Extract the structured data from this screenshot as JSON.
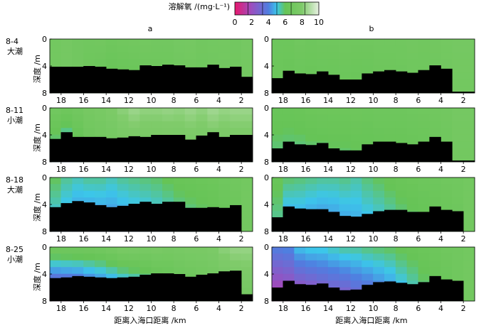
{
  "chart_data": {
    "type": "heatmap",
    "colorbar": {
      "title": "溶解氧 /(mg·L⁻¹)",
      "ticks": [
        "0",
        "2",
        "4",
        "6",
        "8",
        "10"
      ],
      "range": [
        0,
        10
      ],
      "colors": [
        "#e8186e",
        "#9a4fc0",
        "#4f7ee0",
        "#3cc6ea",
        "#66c456",
        "#7fcb6a",
        "#e8f0e2"
      ]
    },
    "columns": [
      "a",
      "b"
    ],
    "x_axis": {
      "label": "距离入海口距离 /km",
      "ticks": [
        "18",
        "16",
        "14",
        "12",
        "10",
        "8",
        "6",
        "4",
        "2"
      ],
      "tick_values": [
        18,
        16,
        14,
        12,
        10,
        8,
        6,
        4,
        2
      ],
      "range": [
        19,
        1
      ]
    },
    "y_axis": {
      "label": "深度 /m",
      "ticks": [
        "0",
        "4",
        "8"
      ],
      "tick_values": [
        0,
        4,
        8
      ],
      "range": [
        0,
        8
      ]
    },
    "rows": [
      {
        "date": "8-4",
        "tide": "大潮",
        "bottom": {
          "a": [
            4.1,
            4.1,
            4.1,
            4.0,
            4.1,
            4.4,
            4.5,
            4.6,
            3.9,
            4.0,
            3.8,
            3.9,
            4.2,
            4.2,
            3.8,
            4.3,
            4.1,
            5.6
          ],
          "b": [
            5.8,
            4.7,
            5.1,
            5.2,
            4.8,
            5.3,
            6.0,
            6.0,
            5.1,
            4.8,
            4.6,
            4.8,
            5.0,
            4.6,
            3.9,
            4.4,
            7.8,
            7.8
          ]
        },
        "do": {
          "a": [
            [
              7.0,
              7.0
            ],
            [
              7.2,
              7.1
            ],
            [
              7.0,
              6.9
            ],
            [
              6.9,
              6.4
            ],
            [
              7.0,
              6.0
            ],
            [
              6.8,
              5.8
            ],
            [
              6.9,
              6.0
            ],
            [
              7.0,
              6.0
            ],
            [
              7.1,
              6.2
            ],
            [
              7.0,
              6.3
            ],
            [
              7.0,
              6.4
            ],
            [
              7.2,
              6.5
            ],
            [
              7.2,
              6.6
            ],
            [
              7.0,
              6.6
            ],
            [
              7.1,
              6.7
            ],
            [
              7.1,
              6.8
            ],
            [
              7.0,
              6.8
            ],
            [
              7.2,
              7.0
            ]
          ],
          "b": [
            [
              6.6,
              6.4
            ],
            [
              6.6,
              6.2
            ],
            [
              6.8,
              6.3
            ],
            [
              6.7,
              6.2
            ],
            [
              6.8,
              6.3
            ],
            [
              6.8,
              6.2
            ],
            [
              6.9,
              6.3
            ],
            [
              6.8,
              6.2
            ],
            [
              6.8,
              6.3
            ],
            [
              6.9,
              6.4
            ],
            [
              6.9,
              6.4
            ],
            [
              6.9,
              6.5
            ],
            [
              7.0,
              6.6
            ],
            [
              6.9,
              6.6
            ],
            [
              7.0,
              6.6
            ],
            [
              7.1,
              6.8
            ],
            [
              7.2,
              7.0
            ],
            [
              7.2,
              7.0
            ]
          ]
        }
      },
      {
        "date": "8-11",
        "tide": "小潮",
        "bottom": {
          "a": [
            4.6,
            3.6,
            4.3,
            4.3,
            4.3,
            4.5,
            4.4,
            4.2,
            4.3,
            4.0,
            4.0,
            4.0,
            4.7,
            4.1,
            3.6,
            4.3,
            4.0,
            4.0
          ],
          "b": [
            6.0,
            5.0,
            5.4,
            5.5,
            5.2,
            6.0,
            6.3,
            6.3,
            5.4,
            5.0,
            5.0,
            5.2,
            5.4,
            5.0,
            4.3,
            5.0,
            7.8,
            7.8
          ]
        },
        "do": {
          "a": [
            [
              7.0,
              5.0
            ],
            [
              6.8,
              4.2
            ],
            [
              7.0,
              5.3
            ],
            [
              7.3,
              6.4
            ],
            [
              7.5,
              6.6
            ],
            [
              7.8,
              6.7
            ],
            [
              8.3,
              6.9
            ],
            [
              8.6,
              6.9
            ],
            [
              8.4,
              6.9
            ],
            [
              8.4,
              6.9
            ],
            [
              8.5,
              6.9
            ],
            [
              8.4,
              7.0
            ],
            [
              8.6,
              7.0
            ],
            [
              8.4,
              7.0
            ],
            [
              8.7,
              7.0
            ],
            [
              8.5,
              7.0
            ],
            [
              8.6,
              7.0
            ],
            [
              8.6,
              7.0
            ]
          ],
          "b": [
            [
              6.3,
              5.6
            ],
            [
              6.3,
              5.5
            ],
            [
              6.4,
              5.5
            ],
            [
              6.5,
              5.6
            ],
            [
              6.6,
              5.6
            ],
            [
              6.6,
              5.7
            ],
            [
              6.6,
              5.7
            ],
            [
              6.7,
              5.8
            ],
            [
              6.6,
              5.8
            ],
            [
              6.7,
              5.9
            ],
            [
              6.7,
              6.0
            ],
            [
              6.7,
              6.0
            ],
            [
              6.8,
              6.1
            ],
            [
              6.8,
              6.2
            ],
            [
              6.9,
              6.4
            ],
            [
              7.0,
              6.6
            ],
            [
              7.2,
              7.0
            ],
            [
              7.2,
              7.0
            ]
          ]
        }
      },
      {
        "date": "8-18",
        "tide": "大潮",
        "bottom": {
          "a": [
            4.4,
            3.8,
            3.5,
            3.7,
            4.1,
            4.4,
            4.2,
            3.9,
            3.6,
            3.9,
            3.6,
            3.6,
            4.5,
            4.5,
            4.4,
            4.5,
            4.1,
            8.0
          ],
          "b": [
            5.9,
            4.3,
            4.6,
            4.7,
            4.7,
            5.1,
            5.7,
            5.8,
            5.4,
            5.0,
            4.8,
            4.8,
            5.1,
            5.1,
            4.3,
            4.8,
            5.0,
            8.0
          ]
        },
        "do": {
          "a": [
            [
              6.0,
              4.7
            ],
            [
              5.6,
              4.3
            ],
            [
              5.4,
              3.9
            ],
            [
              5.6,
              3.7
            ],
            [
              5.6,
              3.8
            ],
            [
              5.4,
              3.9
            ],
            [
              5.6,
              4.1
            ],
            [
              5.7,
              4.3
            ],
            [
              5.8,
              4.4
            ],
            [
              5.9,
              4.6
            ],
            [
              6.1,
              4.8
            ],
            [
              6.3,
              5.1
            ],
            [
              6.4,
              5.3
            ],
            [
              6.5,
              5.5
            ],
            [
              6.6,
              5.7
            ],
            [
              6.8,
              6.0
            ],
            [
              6.9,
              6.3
            ],
            [
              7.0,
              7.0
            ]
          ],
          "b": [
            [
              6.2,
              5.4
            ],
            [
              5.9,
              4.1
            ],
            [
              5.8,
              4.2
            ],
            [
              5.7,
              4.0
            ],
            [
              5.6,
              3.9
            ],
            [
              5.6,
              4.0
            ],
            [
              5.7,
              4.2
            ],
            [
              5.5,
              4.4
            ],
            [
              5.8,
              4.6
            ],
            [
              6.0,
              4.8
            ],
            [
              6.2,
              5.1
            ],
            [
              6.4,
              5.4
            ],
            [
              6.5,
              5.6
            ],
            [
              6.6,
              5.8
            ],
            [
              6.7,
              6.0
            ],
            [
              6.8,
              6.2
            ],
            [
              6.9,
              6.5
            ],
            [
              7.0,
              7.0
            ]
          ]
        }
      },
      {
        "date": "8-25",
        "tide": "小潮",
        "bottom": {
          "a": [
            4.6,
            4.5,
            4.3,
            4.4,
            4.5,
            4.6,
            4.5,
            4.4,
            4.1,
            3.9,
            3.9,
            4.0,
            4.4,
            4.1,
            3.9,
            3.6,
            3.5,
            7.0
          ],
          "b": [
            6.0,
            5.0,
            5.5,
            5.6,
            5.4,
            6.0,
            6.4,
            6.3,
            5.6,
            5.2,
            5.1,
            5.3,
            5.5,
            5.2,
            4.3,
            4.8,
            5.0,
            8.0
          ]
        },
        "do": {
          "a": [
            [
              7.0,
              1.2
            ],
            [
              7.0,
              1.4
            ],
            [
              7.0,
              1.6
            ],
            [
              7.0,
              2.2
            ],
            [
              7.1,
              2.6
            ],
            [
              7.3,
              3.0
            ],
            [
              7.6,
              3.4
            ],
            [
              7.6,
              3.8
            ],
            [
              7.5,
              4.3
            ],
            [
              7.6,
              4.8
            ],
            [
              7.4,
              5.3
            ],
            [
              7.5,
              5.8
            ],
            [
              7.6,
              6.0
            ],
            [
              7.6,
              6.3
            ],
            [
              7.8,
              6.5
            ],
            [
              8.3,
              6.6
            ],
            [
              8.5,
              6.8
            ],
            [
              8.5,
              7.0
            ]
          ],
          "b": [
            [
              4.0,
              1.0
            ],
            [
              4.2,
              1.2
            ],
            [
              5.0,
              1.4
            ],
            [
              5.2,
              1.6
            ],
            [
              5.2,
              2.0
            ],
            [
              5.4,
              2.2
            ],
            [
              5.6,
              2.3
            ],
            [
              5.6,
              2.8
            ],
            [
              5.8,
              3.0
            ],
            [
              5.9,
              3.4
            ],
            [
              6.0,
              3.8
            ],
            [
              6.2,
              4.4
            ],
            [
              6.3,
              5.0
            ],
            [
              6.5,
              5.5
            ],
            [
              6.6,
              5.9
            ],
            [
              6.8,
              6.3
            ],
            [
              6.9,
              6.7
            ],
            [
              7.0,
              7.0
            ]
          ]
        }
      }
    ]
  }
}
